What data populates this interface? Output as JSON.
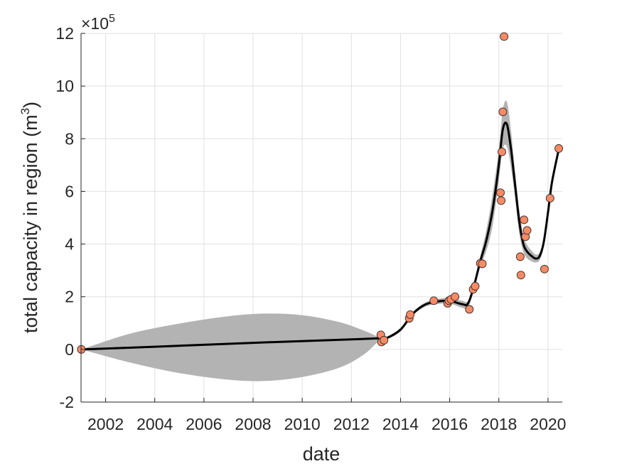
{
  "chart_data": {
    "type": "scatter",
    "title": "",
    "xlabel": "date",
    "ylabel_main": "total capacity in region (m",
    "ylabel_sup": "3",
    "ylabel_close": ")",
    "exponent_prefix": "×10",
    "exponent_power": "5",
    "y_scale_factor": 100000,
    "xlim": [
      "2001-01-01",
      "2020-08-01"
    ],
    "ylim": [
      -2,
      12
    ],
    "x_ticks": [
      "2002",
      "2004",
      "2006",
      "2008",
      "2010",
      "2012",
      "2014",
      "2016",
      "2018",
      "2020"
    ],
    "y_ticks": [
      "-2",
      "0",
      "2",
      "4",
      "6",
      "8",
      "10",
      "12"
    ],
    "grid": true,
    "colors": {
      "marker_fill": "#f58b66",
      "marker_edge": "#3a2a24",
      "fit_line": "#000000",
      "band": "#b3b3b3",
      "grid": "#e0e0e0",
      "axis": "#262626"
    },
    "series": [
      {
        "kind": "observations",
        "x": [
          "2001-01-05",
          "2013-03-15",
          "2013-03-25",
          "2013-05-01",
          "2014-05-10",
          "2014-05-25",
          "2015-05-10",
          "2015-12-01",
          "2015-12-20",
          "2016-01-20",
          "2016-03-20",
          "2016-10-20",
          "2016-12-15",
          "2017-01-15",
          "2017-04-01",
          "2017-05-01",
          "2018-01-25",
          "2018-02-05",
          "2018-02-15",
          "2018-03-01",
          "2018-03-20",
          "2018-11-15",
          "2018-11-25",
          "2019-01-10",
          "2019-02-01",
          "2019-02-25",
          "2019-11-10",
          "2020-02-01",
          "2020-06-10"
        ],
        "y": [
          0,
          0.55,
          0.28,
          0.35,
          1.18,
          1.32,
          1.85,
          1.75,
          1.85,
          1.9,
          2.0,
          1.52,
          2.28,
          2.4,
          3.27,
          3.25,
          5.95,
          5.65,
          7.5,
          9.02,
          11.88,
          3.52,
          2.82,
          4.92,
          4.28,
          4.52,
          3.05,
          5.74,
          7.63
        ]
      },
      {
        "kind": "fit",
        "x": [
          "2001-01-05",
          "2004-01-01",
          "2008-01-01",
          "2012-01-01",
          "2013-03-01",
          "2013-06-01",
          "2014-01-01",
          "2014-07-01",
          "2015-01-01",
          "2015-07-01",
          "2016-01-01",
          "2016-07-01",
          "2016-10-01",
          "2017-01-01",
          "2017-04-01",
          "2017-07-01",
          "2017-10-01",
          "2018-01-01",
          "2018-03-01",
          "2018-05-01",
          "2018-07-01",
          "2018-09-01",
          "2018-11-01",
          "2019-01-01",
          "2019-03-01",
          "2019-05-01",
          "2019-07-01",
          "2019-09-01",
          "2019-11-01",
          "2020-01-01",
          "2020-03-01",
          "2020-06-10"
        ],
        "y": [
          0,
          0.1,
          0.25,
          0.38,
          0.42,
          0.42,
          0.75,
          1.35,
          1.7,
          1.82,
          1.84,
          1.72,
          1.75,
          2.45,
          3.35,
          4.15,
          5.3,
          7.0,
          8.35,
          8.55,
          7.6,
          6.2,
          4.85,
          4.0,
          3.7,
          3.55,
          3.45,
          3.55,
          4.1,
          5.2,
          6.35,
          7.6
        ]
      },
      {
        "kind": "band_upper",
        "x": [
          "2001-01-05",
          "2003-01-01",
          "2005-01-01",
          "2007-01-01",
          "2008-07-01",
          "2010-01-01",
          "2011-07-01",
          "2012-07-01",
          "2013-03-01",
          "2013-06-01",
          "2014-01-01",
          "2014-07-01",
          "2015-01-01",
          "2015-07-01",
          "2016-01-01",
          "2016-07-01",
          "2016-10-01",
          "2017-01-01",
          "2017-04-01",
          "2017-07-01",
          "2017-10-01",
          "2018-01-01",
          "2018-03-01",
          "2018-05-01",
          "2018-07-01",
          "2018-09-01",
          "2018-11-01",
          "2019-01-01",
          "2019-03-01",
          "2019-05-01",
          "2019-07-01",
          "2019-09-01",
          "2019-11-01",
          "2020-01-01",
          "2020-03-01",
          "2020-06-10"
        ],
        "y": [
          0,
          0.6,
          0.98,
          1.26,
          1.36,
          1.3,
          1.04,
          0.72,
          0.46,
          0.47,
          0.82,
          1.42,
          1.78,
          1.92,
          1.94,
          1.85,
          1.85,
          2.6,
          3.55,
          4.55,
          5.9,
          7.6,
          9.1,
          9.4,
          8.3,
          6.7,
          5.3,
          4.3,
          3.95,
          3.75,
          3.6,
          3.7,
          4.25,
          5.3,
          6.45,
          7.7
        ]
      },
      {
        "kind": "band_lower",
        "x": [
          "2001-01-05",
          "2003-01-01",
          "2005-01-01",
          "2007-01-01",
          "2008-07-01",
          "2010-01-01",
          "2011-07-01",
          "2012-07-01",
          "2013-03-01",
          "2013-06-01",
          "2014-01-01",
          "2014-07-01",
          "2015-01-01",
          "2015-07-01",
          "2016-01-01",
          "2016-07-01",
          "2016-10-01",
          "2017-01-01",
          "2017-04-01",
          "2017-07-01",
          "2017-10-01",
          "2018-01-01",
          "2018-03-01",
          "2018-05-01",
          "2018-07-01",
          "2018-09-01",
          "2018-11-01",
          "2019-01-01",
          "2019-03-01",
          "2019-05-01",
          "2019-07-01",
          "2019-09-01",
          "2019-11-01",
          "2020-01-01",
          "2020-03-01",
          "2020-06-10"
        ],
        "y": [
          0,
          -0.5,
          -0.9,
          -1.15,
          -1.2,
          -1.05,
          -0.7,
          -0.2,
          0.35,
          0.37,
          0.68,
          1.28,
          1.62,
          1.72,
          1.74,
          1.58,
          1.6,
          2.3,
          3.15,
          3.75,
          4.7,
          6.4,
          7.6,
          7.7,
          6.9,
          5.7,
          4.4,
          3.7,
          3.45,
          3.35,
          3.3,
          3.4,
          3.95,
          5.1,
          6.25,
          7.5
        ]
      }
    ]
  }
}
